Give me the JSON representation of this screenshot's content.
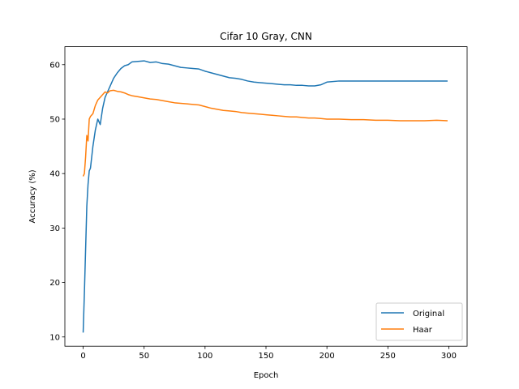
{
  "chart_data": {
    "type": "line",
    "title": "Cifar 10 Gray, CNN",
    "xlabel": "Epoch",
    "ylabel": "Accuracy (%)",
    "xlim": [
      -15,
      315
    ],
    "ylim": [
      8.3,
      63.3
    ],
    "xticks": [
      0,
      50,
      100,
      150,
      200,
      250,
      300
    ],
    "yticks": [
      10,
      20,
      30,
      40,
      50,
      60
    ],
    "grid": false,
    "legend": "lower-right",
    "series": [
      {
        "name": "Original",
        "color": "#1f77b4",
        "x": [
          0,
          1,
          2,
          3,
          4,
          5,
          6,
          8,
          10,
          12,
          14,
          16,
          18,
          20,
          22,
          25,
          28,
          31,
          34,
          37,
          40,
          45,
          50,
          55,
          60,
          65,
          70,
          75,
          80,
          85,
          90,
          95,
          100,
          105,
          110,
          115,
          120,
          125,
          130,
          135,
          140,
          145,
          150,
          155,
          160,
          165,
          170,
          175,
          180,
          185,
          190,
          195,
          200,
          210,
          220,
          230,
          240,
          250,
          260,
          270,
          280,
          290,
          299
        ],
        "values": [
          10.8,
          18,
          26,
          34,
          38,
          40.5,
          41,
          45,
          48,
          50,
          49,
          52,
          54,
          55,
          56,
          57.5,
          58.5,
          59.3,
          59.8,
          60,
          60.5,
          60.6,
          60.7,
          60.4,
          60.5,
          60.2,
          60.1,
          59.8,
          59.5,
          59.4,
          59.3,
          59.2,
          58.8,
          58.5,
          58.2,
          57.9,
          57.6,
          57.5,
          57.3,
          57.0,
          56.8,
          56.7,
          56.6,
          56.5,
          56.4,
          56.3,
          56.3,
          56.2,
          56.2,
          56.1,
          56.1,
          56.3,
          56.8,
          57.0,
          57.0,
          57.0,
          57.0,
          57.0,
          57.0,
          57.0,
          57.0,
          57.0,
          57.0
        ]
      },
      {
        "name": "Haar",
        "color": "#ff7f0e",
        "x": [
          0,
          1,
          2,
          3,
          4,
          5,
          6,
          8,
          10,
          12,
          14,
          16,
          18,
          20,
          22,
          25,
          28,
          31,
          34,
          37,
          40,
          45,
          50,
          55,
          60,
          65,
          70,
          75,
          80,
          85,
          90,
          95,
          100,
          105,
          110,
          115,
          120,
          125,
          130,
          135,
          140,
          145,
          150,
          155,
          160,
          165,
          170,
          175,
          180,
          185,
          190,
          195,
          200,
          210,
          220,
          230,
          240,
          250,
          260,
          270,
          280,
          290,
          299
        ],
        "values": [
          39.5,
          40,
          43,
          47,
          46,
          50,
          50.5,
          51,
          52.5,
          53.5,
          54,
          54.5,
          55,
          54.8,
          55.2,
          55.3,
          55.1,
          55,
          54.8,
          54.5,
          54.3,
          54.1,
          53.9,
          53.7,
          53.6,
          53.4,
          53.2,
          53.0,
          52.9,
          52.8,
          52.7,
          52.6,
          52.3,
          52.0,
          51.8,
          51.6,
          51.5,
          51.4,
          51.2,
          51.1,
          51.0,
          50.9,
          50.8,
          50.7,
          50.6,
          50.5,
          50.4,
          50.4,
          50.3,
          50.2,
          50.2,
          50.1,
          50.0,
          50.0,
          49.9,
          49.9,
          49.8,
          49.8,
          49.7,
          49.7,
          49.7,
          49.8,
          49.7
        ]
      }
    ]
  }
}
